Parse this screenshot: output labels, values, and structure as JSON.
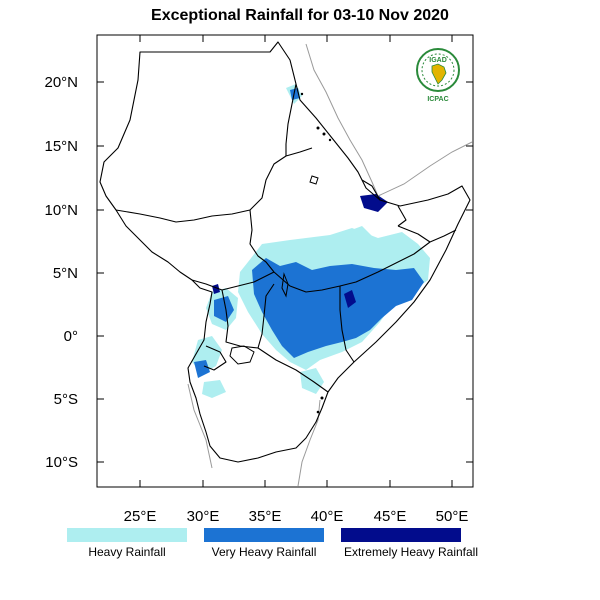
{
  "title": "Exceptional Rainfall for 03-10 Nov 2020",
  "lat_labels": [
    "20°N",
    "15°N",
    "10°N",
    "5°N",
    "0°",
    "5°S",
    "10°S"
  ],
  "lon_labels": [
    "25°E",
    "30°E",
    "35°E",
    "40°E",
    "45°E",
    "50°E"
  ],
  "logo": {
    "top_text": "IGAD",
    "bottom_text": "ICPAC"
  },
  "legend": [
    {
      "label": "Heavy Rainfall",
      "color": "#aeeef0"
    },
    {
      "label": "Very Heavy Rainfall",
      "color": "#1c73d3"
    },
    {
      "label": "Extremely Heavy Rainfall",
      "color": "#020c8c"
    }
  ]
}
